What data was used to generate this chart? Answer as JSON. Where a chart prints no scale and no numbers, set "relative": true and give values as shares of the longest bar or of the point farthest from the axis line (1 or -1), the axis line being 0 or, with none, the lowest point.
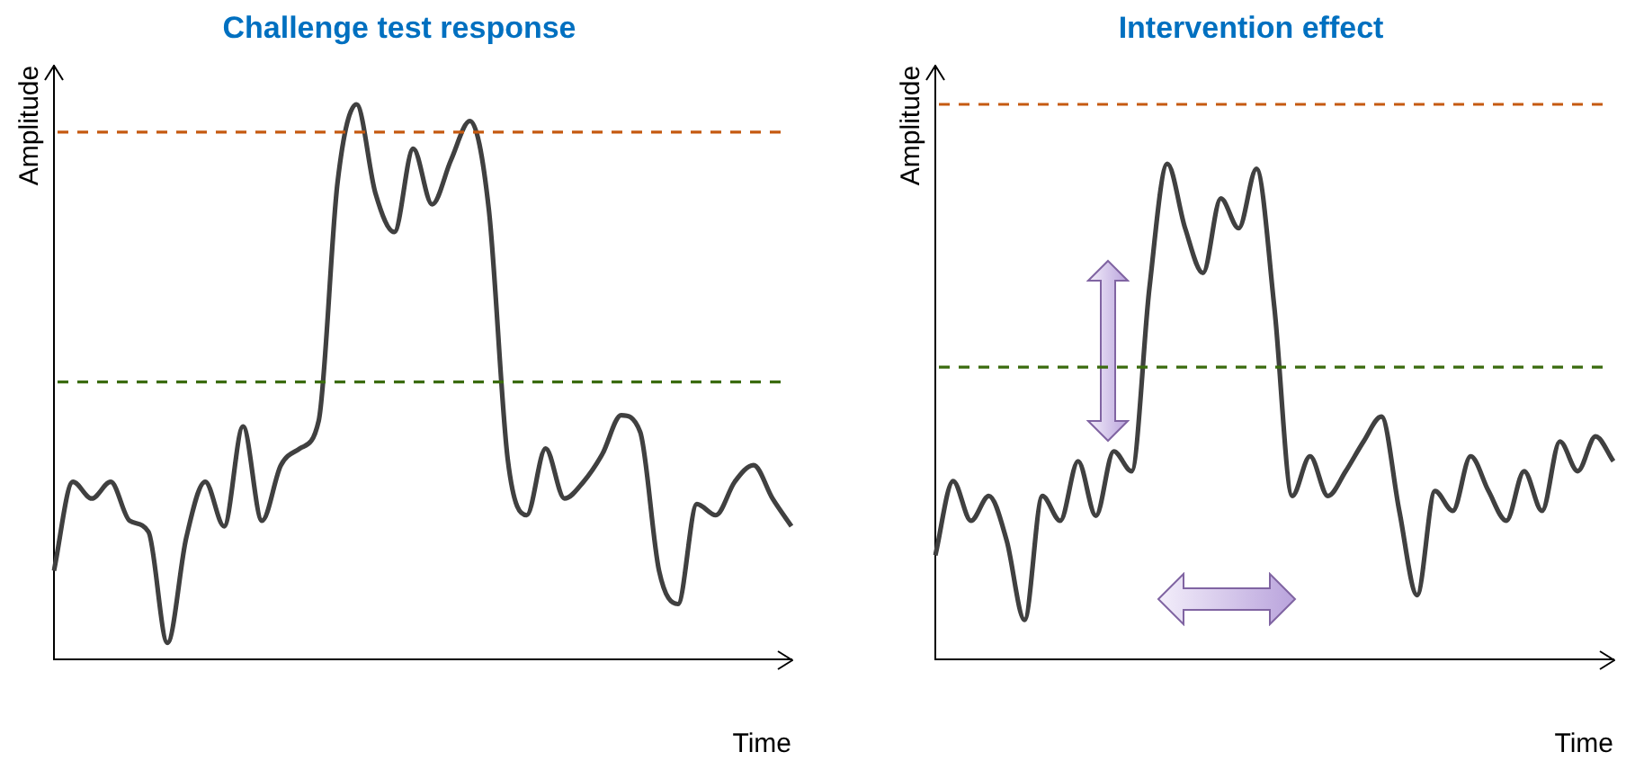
{
  "chart_data": [
    {
      "type": "line",
      "title": "Challenge test response",
      "xlabel": "Time",
      "ylabel": "Amplitude",
      "relative": true,
      "color": "#404040",
      "categories": [
        null,
        null,
        null,
        null,
        null,
        null,
        null,
        null,
        null,
        null,
        null,
        null,
        null,
        null,
        null,
        null,
        null,
        null,
        null,
        null,
        null,
        null,
        null,
        null,
        null,
        null,
        null,
        null,
        null,
        null,
        null,
        null,
        null,
        null,
        null,
        null,
        null,
        null,
        null,
        null
      ],
      "values": [
        0.16,
        0.32,
        0.29,
        0.32,
        0.25,
        0.23,
        0.03,
        0.22,
        0.32,
        0.24,
        0.42,
        0.25,
        0.35,
        0.38,
        0.43,
        0.86,
        1,
        0.84,
        0.77,
        0.92,
        0.82,
        0.9,
        0.97,
        0.81,
        0.36,
        0.26,
        0.38,
        0.29,
        0.32,
        0.37,
        0.44,
        0.41,
        0.16,
        0.1,
        0.28,
        0.26,
        0.32,
        0.35,
        0.29,
        0.24
      ],
      "ref_lines": [
        {
          "axis": "y",
          "value": 0.95,
          "color": "#c55a11",
          "line_style": "dashed"
        },
        {
          "axis": "y",
          "value": 0.5,
          "color": "#3a6b0e",
          "line_style": "dashed"
        }
      ]
    },
    {
      "type": "line",
      "title": "Intervention effect",
      "xlabel": "Time",
      "ylabel": "Amplitude",
      "relative": true,
      "color": "#404040",
      "categories": [
        null,
        null,
        null,
        null,
        null,
        null,
        null,
        null,
        null,
        null,
        null,
        null,
        null,
        null,
        null,
        null,
        null,
        null,
        null,
        null,
        null,
        null,
        null,
        null,
        null,
        null,
        null,
        null,
        null,
        null,
        null,
        null,
        null,
        null,
        null,
        null,
        null,
        null,
        null
      ],
      "values": [
        0.21,
        0.36,
        0.28,
        0.33,
        0.24,
        0.08,
        0.33,
        0.28,
        0.4,
        0.29,
        0.42,
        0.38,
        0.75,
        1,
        0.87,
        0.78,
        0.93,
        0.87,
        0.99,
        0.71,
        0.33,
        0.41,
        0.33,
        0.38,
        0.44,
        0.49,
        0.3,
        0.13,
        0.34,
        0.3,
        0.41,
        0.34,
        0.28,
        0.38,
        0.3,
        0.44,
        0.38,
        0.45,
        0.4
      ],
      "ref_lines": [
        {
          "axis": "y",
          "value": 1.12,
          "color": "#c55a11",
          "line_style": "dashed"
        },
        {
          "axis": "y",
          "value": 0.59,
          "color": "#3a6b0e",
          "line_style": "dashed"
        }
      ]
    }
  ]
}
